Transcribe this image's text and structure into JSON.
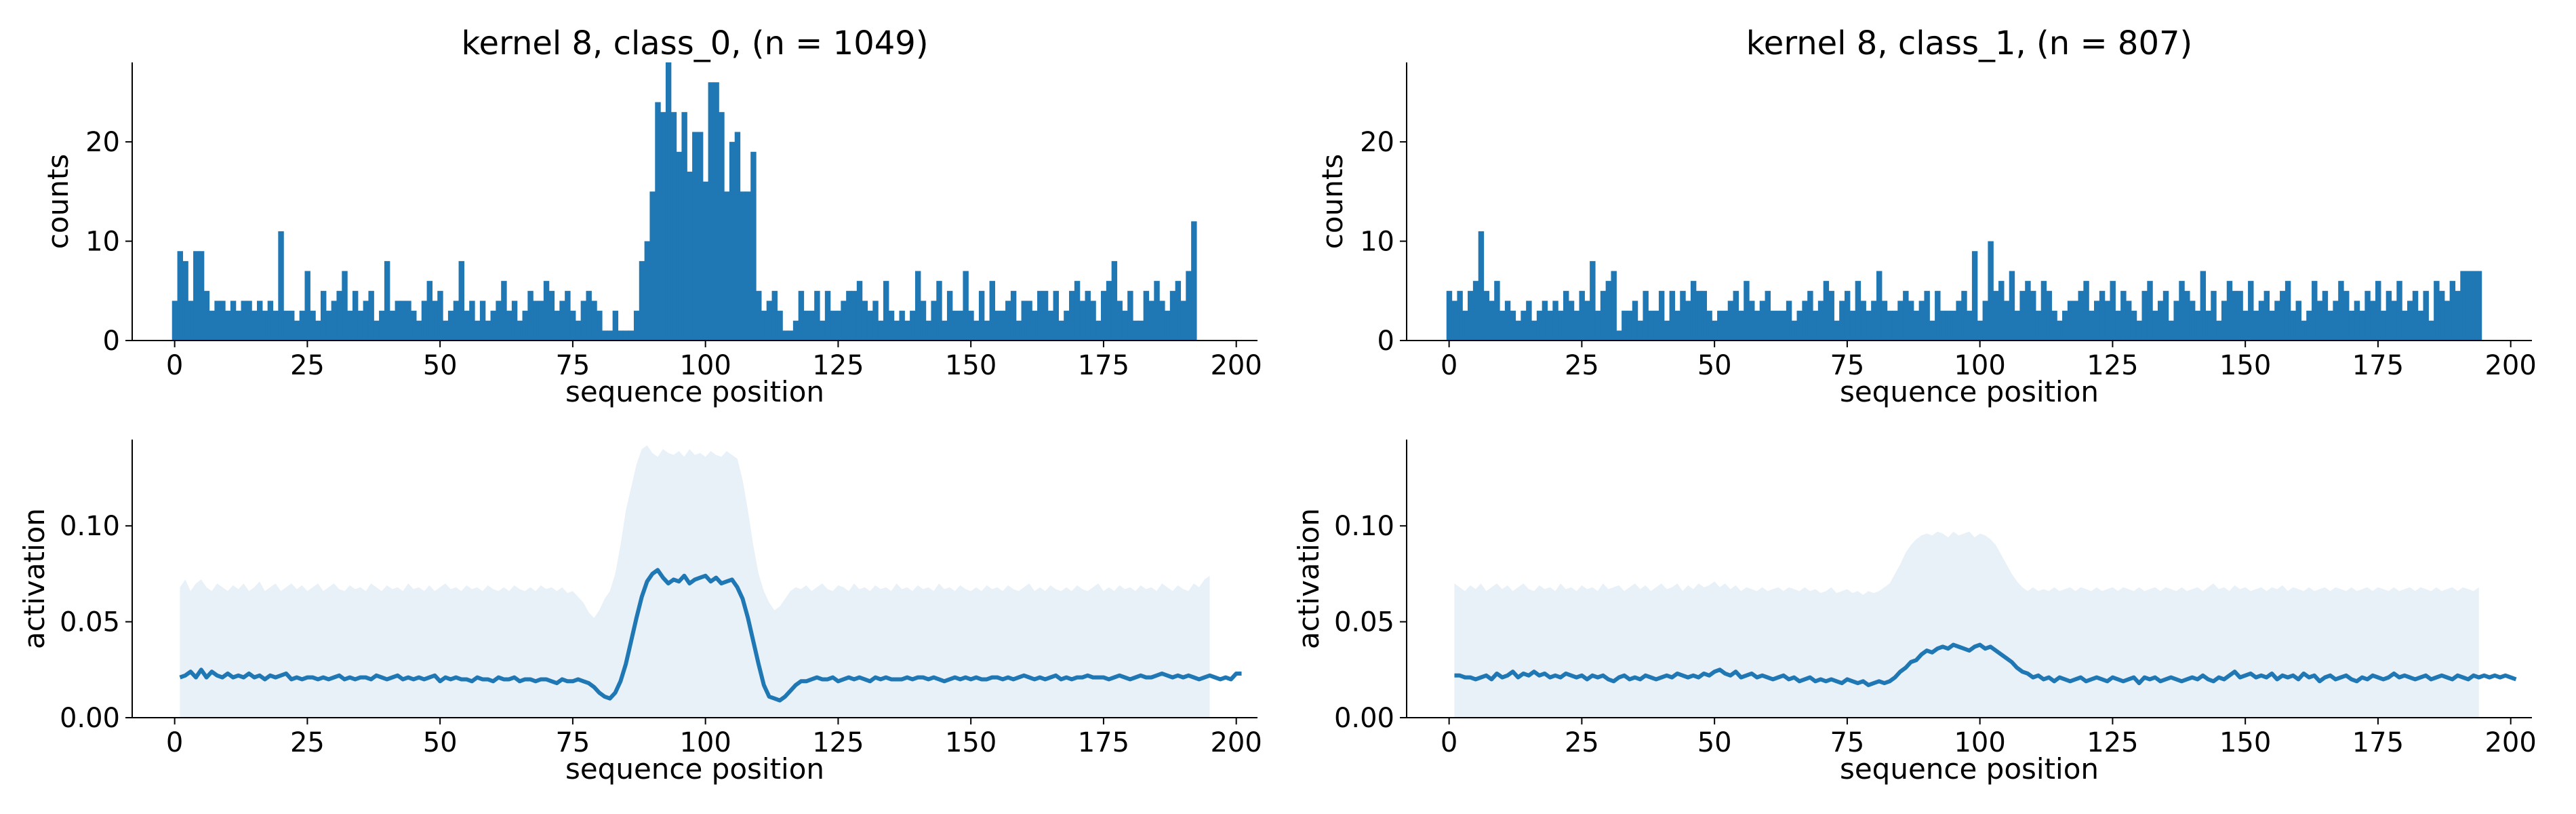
{
  "chart_data": [
    {
      "type": "bar",
      "title": "kernel 8, class_0, (n = 1049)",
      "xlabel": "sequence position",
      "ylabel": "counts",
      "xlim": [
        -8,
        204
      ],
      "ylim": [
        0,
        28
      ],
      "xticks": [
        0,
        25,
        50,
        75,
        100,
        125,
        150,
        175,
        200
      ],
      "yticks": [
        0,
        10,
        20
      ],
      "color": "#1f77b4",
      "x_start": 0,
      "values": [
        4,
        9,
        8,
        4,
        9,
        9,
        5,
        3,
        4,
        4,
        3,
        4,
        3,
        4,
        4,
        3,
        4,
        3,
        4,
        3,
        11,
        3,
        3,
        2,
        3,
        7,
        3,
        2,
        5,
        3,
        4,
        5,
        7,
        3,
        5,
        3,
        4,
        5,
        2,
        3,
        8,
        3,
        4,
        4,
        4,
        3,
        2,
        4,
        6,
        4,
        5,
        2,
        3,
        4,
        8,
        3,
        4,
        2,
        4,
        2,
        3,
        4,
        6,
        3,
        4,
        2,
        3,
        5,
        4,
        4,
        6,
        5,
        3,
        4,
        5,
        3,
        2,
        4,
        5,
        4,
        3,
        1,
        1,
        3,
        1,
        1,
        1,
        3,
        8,
        10,
        15,
        24,
        23,
        28,
        23,
        19,
        23,
        17,
        21,
        21,
        16,
        26,
        26,
        23,
        15,
        20,
        21,
        15,
        15,
        19,
        5,
        3,
        4,
        5,
        3,
        1,
        1,
        2,
        5,
        3,
        3,
        5,
        2,
        5,
        3,
        3,
        4,
        5,
        5,
        6,
        4,
        3,
        4,
        2,
        6,
        3,
        2,
        3,
        2,
        3,
        7,
        4,
        2,
        4,
        6,
        2,
        5,
        3,
        3,
        7,
        3,
        2,
        5,
        2,
        6,
        3,
        3,
        4,
        5,
        2,
        4,
        4,
        3,
        5,
        5,
        3,
        5,
        2,
        3,
        5,
        6,
        4,
        5,
        4,
        2,
        5,
        6,
        8,
        4,
        3,
        5,
        2,
        2,
        5,
        4,
        6,
        4,
        3,
        5,
        6,
        4,
        7,
        12
      ]
    },
    {
      "type": "bar",
      "title": "kernel 8, class_1, (n = 807)",
      "xlabel": "sequence position",
      "ylabel": "counts",
      "xlim": [
        -8,
        204
      ],
      "ylim": [
        0,
        28
      ],
      "xticks": [
        0,
        25,
        50,
        75,
        100,
        125,
        150,
        175,
        200
      ],
      "yticks": [
        0,
        10,
        20
      ],
      "color": "#1f77b4",
      "x_start": 0,
      "values": [
        5,
        4,
        5,
        3,
        5,
        6,
        11,
        5,
        4,
        6,
        3,
        4,
        3,
        2,
        3,
        4,
        2,
        3,
        4,
        3,
        4,
        3,
        5,
        4,
        3,
        5,
        4,
        8,
        3,
        5,
        6,
        7,
        1,
        3,
        3,
        4,
        2,
        5,
        3,
        3,
        5,
        2,
        5,
        3,
        5,
        4,
        6,
        5,
        5,
        3,
        2,
        3,
        3,
        4,
        5,
        3,
        6,
        4,
        3,
        4,
        5,
        3,
        3,
        3,
        4,
        2,
        3,
        4,
        5,
        3,
        4,
        6,
        5,
        2,
        4,
        5,
        3,
        6,
        4,
        3,
        4,
        7,
        4,
        3,
        3,
        4,
        5,
        4,
        3,
        4,
        5,
        2,
        5,
        3,
        3,
        3,
        4,
        5,
        3,
        9,
        2,
        4,
        10,
        5,
        6,
        4,
        7,
        3,
        5,
        6,
        5,
        3,
        6,
        5,
        3,
        2,
        3,
        4,
        4,
        5,
        6,
        3,
        4,
        5,
        4,
        6,
        3,
        5,
        4,
        3,
        2,
        5,
        6,
        3,
        4,
        5,
        2,
        4,
        6,
        5,
        4,
        3,
        7,
        3,
        5,
        2,
        4,
        6,
        5,
        5,
        3,
        6,
        3,
        4,
        5,
        3,
        4,
        5,
        6,
        3,
        4,
        2,
        3,
        6,
        4,
        5,
        3,
        4,
        6,
        5,
        3,
        4,
        3,
        5,
        4,
        6,
        3,
        5,
        4,
        6,
        3,
        4,
        5,
        3,
        5,
        2,
        6,
        5,
        4,
        6,
        5,
        7,
        7,
        7,
        7
      ]
    },
    {
      "type": "line",
      "xlabel": "sequence position",
      "ylabel": "activation",
      "xlim": [
        -8,
        204
      ],
      "ylim": [
        0,
        0.145
      ],
      "xticks": [
        0,
        25,
        50,
        75,
        100,
        125,
        150,
        175,
        200
      ],
      "yticks": [
        0.0,
        0.05,
        0.1
      ],
      "ytick_labels": [
        "0.00",
        "0.05",
        "0.10"
      ],
      "color": "#1f77b4",
      "band_color": "#e8f0f8",
      "x_start": 1,
      "mean": [
        0.021,
        0.022,
        0.024,
        0.021,
        0.025,
        0.021,
        0.024,
        0.022,
        0.021,
        0.023,
        0.021,
        0.022,
        0.021,
        0.023,
        0.021,
        0.022,
        0.02,
        0.022,
        0.021,
        0.022,
        0.023,
        0.02,
        0.021,
        0.02,
        0.021,
        0.021,
        0.02,
        0.021,
        0.02,
        0.021,
        0.022,
        0.02,
        0.021,
        0.02,
        0.021,
        0.021,
        0.02,
        0.022,
        0.021,
        0.02,
        0.021,
        0.022,
        0.02,
        0.021,
        0.02,
        0.021,
        0.02,
        0.021,
        0.022,
        0.019,
        0.021,
        0.02,
        0.021,
        0.02,
        0.02,
        0.019,
        0.021,
        0.02,
        0.02,
        0.019,
        0.021,
        0.02,
        0.02,
        0.021,
        0.019,
        0.02,
        0.02,
        0.019,
        0.02,
        0.02,
        0.019,
        0.018,
        0.02,
        0.019,
        0.019,
        0.02,
        0.019,
        0.018,
        0.016,
        0.013,
        0.011,
        0.01,
        0.013,
        0.019,
        0.028,
        0.04,
        0.052,
        0.063,
        0.071,
        0.075,
        0.077,
        0.073,
        0.07,
        0.072,
        0.071,
        0.074,
        0.07,
        0.072,
        0.073,
        0.074,
        0.071,
        0.073,
        0.07,
        0.071,
        0.072,
        0.068,
        0.062,
        0.052,
        0.04,
        0.028,
        0.017,
        0.011,
        0.01,
        0.009,
        0.011,
        0.014,
        0.017,
        0.019,
        0.019,
        0.02,
        0.021,
        0.02,
        0.02,
        0.021,
        0.019,
        0.02,
        0.021,
        0.02,
        0.021,
        0.02,
        0.019,
        0.021,
        0.02,
        0.021,
        0.02,
        0.02,
        0.02,
        0.021,
        0.02,
        0.021,
        0.021,
        0.02,
        0.021,
        0.02,
        0.019,
        0.02,
        0.021,
        0.02,
        0.021,
        0.02,
        0.021,
        0.02,
        0.02,
        0.021,
        0.021,
        0.02,
        0.021,
        0.02,
        0.021,
        0.022,
        0.021,
        0.02,
        0.021,
        0.02,
        0.021,
        0.022,
        0.02,
        0.021,
        0.02,
        0.021,
        0.021,
        0.022,
        0.021,
        0.021,
        0.021,
        0.02,
        0.021,
        0.022,
        0.021,
        0.02,
        0.021,
        0.022,
        0.021,
        0.021,
        0.022,
        0.023,
        0.022,
        0.021,
        0.022,
        0.021,
        0.022,
        0.021,
        0.02,
        0.021,
        0.022,
        0.021,
        0.02,
        0.021,
        0.02,
        0.023,
        0.023
      ],
      "band_upper": [
        0.068,
        0.072,
        0.066,
        0.07,
        0.072,
        0.068,
        0.066,
        0.07,
        0.068,
        0.066,
        0.069,
        0.067,
        0.07,
        0.066,
        0.068,
        0.071,
        0.066,
        0.068,
        0.07,
        0.066,
        0.068,
        0.07,
        0.067,
        0.069,
        0.066,
        0.068,
        0.07,
        0.066,
        0.068,
        0.07,
        0.067,
        0.066,
        0.069,
        0.067,
        0.068,
        0.066,
        0.07,
        0.068,
        0.066,
        0.069,
        0.067,
        0.068,
        0.066,
        0.07,
        0.067,
        0.068,
        0.066,
        0.069,
        0.066,
        0.068,
        0.07,
        0.067,
        0.068,
        0.066,
        0.069,
        0.067,
        0.068,
        0.066,
        0.069,
        0.067,
        0.066,
        0.068,
        0.066,
        0.069,
        0.067,
        0.066,
        0.068,
        0.066,
        0.069,
        0.067,
        0.068,
        0.066,
        0.068,
        0.065,
        0.066,
        0.063,
        0.06,
        0.055,
        0.052,
        0.056,
        0.062,
        0.066,
        0.075,
        0.09,
        0.108,
        0.12,
        0.132,
        0.14,
        0.142,
        0.138,
        0.136,
        0.14,
        0.138,
        0.137,
        0.139,
        0.136,
        0.14,
        0.137,
        0.138,
        0.136,
        0.139,
        0.137,
        0.136,
        0.139,
        0.137,
        0.135,
        0.124,
        0.108,
        0.09,
        0.075,
        0.066,
        0.06,
        0.056,
        0.058,
        0.062,
        0.066,
        0.068,
        0.067,
        0.069,
        0.066,
        0.068,
        0.07,
        0.067,
        0.066,
        0.069,
        0.068,
        0.066,
        0.07,
        0.067,
        0.068,
        0.066,
        0.069,
        0.067,
        0.068,
        0.066,
        0.07,
        0.067,
        0.068,
        0.066,
        0.069,
        0.067,
        0.068,
        0.066,
        0.07,
        0.067,
        0.068,
        0.066,
        0.069,
        0.067,
        0.066,
        0.068,
        0.066,
        0.069,
        0.067,
        0.068,
        0.066,
        0.069,
        0.067,
        0.066,
        0.068,
        0.07,
        0.066,
        0.068,
        0.066,
        0.069,
        0.067,
        0.066,
        0.068,
        0.066,
        0.069,
        0.067,
        0.066,
        0.068,
        0.07,
        0.066,
        0.068,
        0.066,
        0.069,
        0.067,
        0.068,
        0.066,
        0.069,
        0.067,
        0.068,
        0.066,
        0.07,
        0.068,
        0.066,
        0.069,
        0.067,
        0.066,
        0.07,
        0.068,
        0.072,
        0.074
      ]
    },
    {
      "type": "line",
      "xlabel": "sequence position",
      "ylabel": "activation",
      "xlim": [
        -8,
        204
      ],
      "ylim": [
        0,
        0.145
      ],
      "xticks": [
        0,
        25,
        50,
        75,
        100,
        125,
        150,
        175,
        200
      ],
      "yticks": [
        0.0,
        0.05,
        0.1
      ],
      "ytick_labels": [
        "0.00",
        "0.05",
        "0.10"
      ],
      "color": "#1f77b4",
      "band_color": "#e8f0f8",
      "x_start": 1,
      "mean": [
        0.022,
        0.022,
        0.021,
        0.021,
        0.02,
        0.021,
        0.022,
        0.02,
        0.023,
        0.021,
        0.022,
        0.024,
        0.021,
        0.023,
        0.022,
        0.024,
        0.022,
        0.023,
        0.021,
        0.022,
        0.021,
        0.023,
        0.022,
        0.021,
        0.022,
        0.02,
        0.022,
        0.021,
        0.022,
        0.02,
        0.019,
        0.021,
        0.022,
        0.02,
        0.021,
        0.02,
        0.022,
        0.021,
        0.02,
        0.021,
        0.022,
        0.021,
        0.023,
        0.022,
        0.021,
        0.022,
        0.021,
        0.023,
        0.022,
        0.024,
        0.025,
        0.023,
        0.022,
        0.024,
        0.021,
        0.022,
        0.023,
        0.021,
        0.022,
        0.021,
        0.02,
        0.021,
        0.022,
        0.02,
        0.021,
        0.019,
        0.02,
        0.021,
        0.019,
        0.02,
        0.019,
        0.02,
        0.019,
        0.018,
        0.02,
        0.019,
        0.018,
        0.019,
        0.017,
        0.018,
        0.019,
        0.018,
        0.019,
        0.021,
        0.024,
        0.026,
        0.029,
        0.03,
        0.033,
        0.035,
        0.034,
        0.036,
        0.037,
        0.036,
        0.038,
        0.037,
        0.036,
        0.035,
        0.037,
        0.038,
        0.036,
        0.037,
        0.035,
        0.033,
        0.031,
        0.029,
        0.026,
        0.024,
        0.023,
        0.021,
        0.022,
        0.02,
        0.021,
        0.019,
        0.021,
        0.02,
        0.019,
        0.02,
        0.021,
        0.019,
        0.02,
        0.021,
        0.02,
        0.019,
        0.021,
        0.02,
        0.019,
        0.02,
        0.021,
        0.018,
        0.021,
        0.02,
        0.021,
        0.019,
        0.02,
        0.021,
        0.02,
        0.019,
        0.02,
        0.021,
        0.02,
        0.022,
        0.02,
        0.019,
        0.021,
        0.02,
        0.022,
        0.024,
        0.021,
        0.022,
        0.023,
        0.021,
        0.022,
        0.021,
        0.023,
        0.02,
        0.022,
        0.021,
        0.022,
        0.02,
        0.023,
        0.021,
        0.022,
        0.019,
        0.021,
        0.022,
        0.02,
        0.021,
        0.022,
        0.02,
        0.019,
        0.021,
        0.02,
        0.022,
        0.021,
        0.02,
        0.021,
        0.023,
        0.021,
        0.022,
        0.021,
        0.02,
        0.021,
        0.022,
        0.02,
        0.021,
        0.022,
        0.021,
        0.02,
        0.022,
        0.021,
        0.02,
        0.022,
        0.021,
        0.022,
        0.021,
        0.022,
        0.021,
        0.022,
        0.021,
        0.02
      ],
      "band_upper": [
        0.07,
        0.068,
        0.066,
        0.069,
        0.067,
        0.07,
        0.066,
        0.068,
        0.07,
        0.067,
        0.069,
        0.066,
        0.068,
        0.07,
        0.067,
        0.066,
        0.069,
        0.067,
        0.068,
        0.066,
        0.07,
        0.067,
        0.068,
        0.066,
        0.069,
        0.067,
        0.068,
        0.066,
        0.07,
        0.067,
        0.068,
        0.069,
        0.066,
        0.068,
        0.07,
        0.067,
        0.069,
        0.066,
        0.068,
        0.07,
        0.067,
        0.068,
        0.07,
        0.066,
        0.069,
        0.067,
        0.07,
        0.068,
        0.069,
        0.071,
        0.068,
        0.07,
        0.067,
        0.069,
        0.066,
        0.068,
        0.067,
        0.066,
        0.068,
        0.066,
        0.067,
        0.068,
        0.066,
        0.068,
        0.067,
        0.066,
        0.068,
        0.066,
        0.067,
        0.065,
        0.066,
        0.068,
        0.065,
        0.066,
        0.067,
        0.065,
        0.066,
        0.064,
        0.066,
        0.065,
        0.066,
        0.068,
        0.07,
        0.075,
        0.08,
        0.086,
        0.09,
        0.093,
        0.095,
        0.096,
        0.095,
        0.097,
        0.096,
        0.094,
        0.097,
        0.095,
        0.096,
        0.097,
        0.094,
        0.096,
        0.095,
        0.093,
        0.09,
        0.085,
        0.08,
        0.075,
        0.071,
        0.068,
        0.066,
        0.068,
        0.066,
        0.067,
        0.066,
        0.068,
        0.066,
        0.067,
        0.068,
        0.066,
        0.068,
        0.067,
        0.066,
        0.068,
        0.066,
        0.067,
        0.068,
        0.066,
        0.068,
        0.067,
        0.066,
        0.068,
        0.066,
        0.067,
        0.068,
        0.066,
        0.068,
        0.067,
        0.066,
        0.068,
        0.066,
        0.067,
        0.068,
        0.066,
        0.068,
        0.07,
        0.067,
        0.068,
        0.066,
        0.069,
        0.067,
        0.068,
        0.066,
        0.067,
        0.068,
        0.066,
        0.068,
        0.067,
        0.069,
        0.066,
        0.068,
        0.067,
        0.066,
        0.068,
        0.066,
        0.067,
        0.068,
        0.066,
        0.068,
        0.067,
        0.066,
        0.068,
        0.066,
        0.067,
        0.068,
        0.066,
        0.068,
        0.067,
        0.066,
        0.068,
        0.066,
        0.067,
        0.068,
        0.066,
        0.068,
        0.067,
        0.066,
        0.068,
        0.066,
        0.067,
        0.068,
        0.066,
        0.068,
        0.067,
        0.066,
        0.068
      ]
    }
  ]
}
